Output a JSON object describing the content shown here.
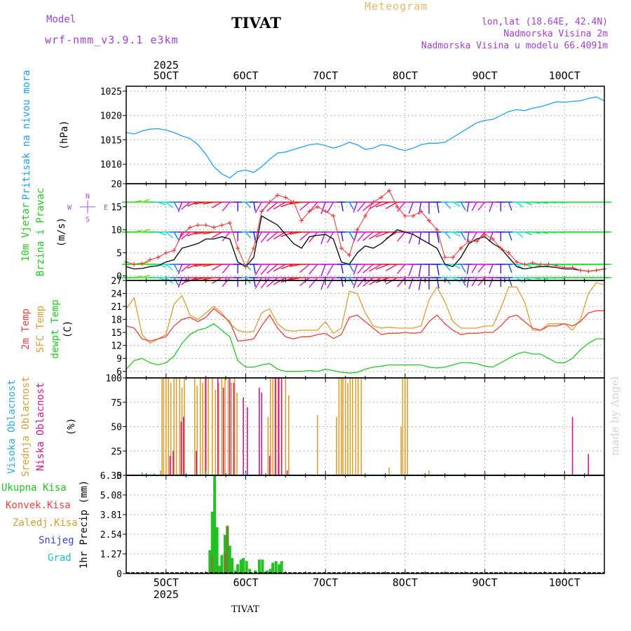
{
  "header": {
    "title": "TIVAT",
    "chart_label": "Meteogram",
    "model_label": "Model",
    "model_name": "wrf-nmm_v3.9.1 e3km",
    "location_lines": [
      "lon,lat (18.64E, 42.4N)",
      "Nadmorska Visina 2m",
      "Nadmorska Visina u modelu 66.4091m"
    ],
    "footer": "TIVAT",
    "credit": "made by Angel"
  },
  "time_axis": {
    "day_labels": [
      "5OCT",
      "6OCT",
      "7OCT",
      "8OCT",
      "9OCT",
      "10OCT"
    ],
    "day_positions": [
      5,
      6,
      7,
      8,
      9,
      10
    ],
    "year": "2025",
    "range": [
      4.5,
      10.5
    ]
  },
  "colors": {
    "pressure": "#1da1f2",
    "wind_speed": "#000000",
    "gust": "#e84040",
    "temp_2m": "#e84040",
    "temp_sfc": "#d8a030",
    "dewpoint": "#20c820",
    "cloud_high": "#2ab0d8",
    "cloud_mid": "#d8a030",
    "cloud_low": "#c81890",
    "precip_total": "#22c022",
    "precip_conv": "#e84040",
    "snow": "#4040e0",
    "hail": "#20c0c0",
    "wind_label": "#a050d0"
  },
  "chart_data": [
    {
      "type": "line",
      "name": "pressure",
      "ylabel_lines": [
        "Pritisak na nivou mora"
      ],
      "unit": "(hPa)",
      "yticks": [
        1010,
        1015,
        1020,
        1025
      ],
      "ylim": [
        1006,
        1026
      ],
      "x": [
        4.5,
        4.6,
        4.7,
        4.8,
        4.9,
        5.0,
        5.1,
        5.2,
        5.3,
        5.4,
        5.5,
        5.6,
        5.7,
        5.8,
        5.9,
        6.0,
        6.1,
        6.2,
        6.3,
        6.4,
        6.5,
        6.6,
        6.7,
        6.8,
        6.9,
        7.0,
        7.1,
        7.2,
        7.3,
        7.4,
        7.5,
        7.6,
        7.7,
        7.8,
        7.9,
        8.0,
        8.1,
        8.2,
        8.3,
        8.4,
        8.5,
        8.6,
        8.7,
        8.8,
        8.9,
        9.0,
        9.1,
        9.2,
        9.3,
        9.4,
        9.5,
        9.6,
        9.7,
        9.8,
        9.9,
        10.0,
        10.1,
        10.2,
        10.3,
        10.4,
        10.5
      ],
      "y": [
        1016.5,
        1016.2,
        1016.8,
        1017.2,
        1017.3,
        1017.0,
        1016.5,
        1015.8,
        1015.3,
        1014.0,
        1012.0,
        1009.5,
        1008.0,
        1007.2,
        1008.5,
        1008.8,
        1008.3,
        1009.5,
        1011.0,
        1012.3,
        1012.5,
        1013.0,
        1013.5,
        1014.0,
        1014.2,
        1013.8,
        1013.3,
        1013.8,
        1014.5,
        1014.0,
        1013.0,
        1013.3,
        1014.0,
        1013.8,
        1013.2,
        1012.8,
        1013.3,
        1014.0,
        1014.3,
        1014.3,
        1014.5,
        1015.5,
        1016.5,
        1017.5,
        1018.5,
        1019.0,
        1019.2,
        1020.0,
        1020.8,
        1021.2,
        1021.0,
        1021.5,
        1021.8,
        1022.3,
        1022.8,
        1022.7,
        1022.9,
        1023.0,
        1023.5,
        1023.8,
        1023.0
      ]
    },
    {
      "type": "line",
      "name": "wind",
      "ylabel_lines": [
        "10m Vjetar",
        "Brzina i Pravac"
      ],
      "unit": "(m/s)",
      "yticks": [
        0,
        5,
        10,
        15,
        20
      ],
      "ylim": [
        -1,
        20
      ],
      "compass": {
        "n": "N",
        "s": "S",
        "e": "E",
        "w": "W"
      },
      "x": [
        4.5,
        4.6,
        4.7,
        4.8,
        4.9,
        5.0,
        5.1,
        5.2,
        5.3,
        5.4,
        5.5,
        5.6,
        5.7,
        5.8,
        5.9,
        6.0,
        6.1,
        6.2,
        6.3,
        6.4,
        6.5,
        6.6,
        6.7,
        6.8,
        6.9,
        7.0,
        7.1,
        7.2,
        7.3,
        7.4,
        7.5,
        7.6,
        7.7,
        7.8,
        7.9,
        8.0,
        8.1,
        8.2,
        8.3,
        8.4,
        8.5,
        8.6,
        8.7,
        8.8,
        8.9,
        9.0,
        9.1,
        9.2,
        9.3,
        9.4,
        9.5,
        9.6,
        9.7,
        9.8,
        9.9,
        10.0,
        10.1,
        10.2,
        10.3,
        10.4,
        10.5
      ],
      "speed": [
        2.0,
        1.5,
        1.6,
        2.0,
        2.2,
        3.0,
        3.5,
        6.0,
        6.5,
        7.0,
        8.0,
        8.0,
        8.5,
        8.0,
        3.0,
        2.0,
        4.0,
        13.0,
        12.0,
        11.0,
        9.0,
        7.0,
        6.0,
        8.5,
        8.8,
        9.0,
        8.0,
        3.0,
        2.5,
        5.0,
        6.5,
        6.0,
        7.0,
        8.5,
        10.0,
        9.5,
        9.0,
        8.0,
        7.0,
        6.0,
        2.5,
        2.0,
        4.0,
        7.0,
        8.0,
        8.5,
        7.0,
        6.0,
        4.0,
        2.0,
        1.5,
        1.8,
        2.0,
        2.0,
        1.8,
        1.5,
        1.5,
        1.2,
        1.0,
        1.2,
        1.5
      ],
      "gust": [
        3.0,
        2.5,
        2.6,
        3.5,
        4.0,
        5.0,
        5.5,
        9.0,
        10.5,
        11.0,
        11.0,
        10.5,
        11.0,
        11.5,
        6.0,
        2.0,
        6.0,
        14.0,
        16.0,
        17.5,
        17.0,
        16.0,
        12.0,
        14.0,
        15.0,
        14.0,
        13.0,
        6.0,
        4.5,
        10.0,
        13.0,
        16.0,
        17.0,
        18.5,
        15.0,
        13.0,
        13.0,
        14.0,
        12.0,
        10.0,
        4.0,
        4.0,
        6.0,
        7.5,
        7.5,
        9.0,
        8.0,
        6.0,
        5.0,
        3.0,
        2.5,
        2.8,
        2.5,
        2.5,
        2.2,
        1.8,
        1.8,
        1.2,
        1.0,
        1.2,
        1.5
      ],
      "direction_deg": [
        90,
        80,
        70,
        90,
        110,
        130,
        150,
        200,
        230,
        250,
        260,
        260,
        240,
        220,
        180,
        140,
        170,
        210,
        220,
        230,
        240,
        250,
        260,
        230,
        220,
        200,
        210,
        170,
        150,
        200,
        220,
        230,
        240,
        250,
        240,
        220,
        200,
        190,
        180,
        170,
        140,
        120,
        150,
        190,
        210,
        220,
        200,
        180,
        160,
        130,
        110,
        100,
        100,
        95,
        95,
        90,
        90,
        90,
        90,
        90,
        90
      ]
    },
    {
      "type": "line",
      "name": "temperature",
      "ylabel_lines": [
        "2m Temp",
        "SFC Temp",
        "dewpt Temp"
      ],
      "unit": "(C)",
      "yticks": [
        6,
        9,
        12,
        15,
        18,
        21,
        24,
        27
      ],
      "ylim": [
        4.5,
        27
      ],
      "x": [
        4.5,
        4.6,
        4.7,
        4.8,
        4.9,
        5.0,
        5.1,
        5.2,
        5.3,
        5.4,
        5.5,
        5.6,
        5.7,
        5.8,
        5.9,
        6.0,
        6.1,
        6.2,
        6.3,
        6.4,
        6.5,
        6.6,
        6.7,
        6.8,
        6.9,
        7.0,
        7.1,
        7.2,
        7.3,
        7.4,
        7.5,
        7.6,
        7.7,
        7.8,
        7.9,
        8.0,
        8.1,
        8.2,
        8.3,
        8.4,
        8.5,
        8.6,
        8.7,
        8.8,
        8.9,
        9.0,
        9.1,
        9.2,
        9.3,
        9.4,
        9.5,
        9.6,
        9.7,
        9.8,
        9.9,
        10.0,
        10.1,
        10.2,
        10.3,
        10.4,
        10.5
      ],
      "t2m": [
        16.5,
        16.0,
        13.5,
        13.0,
        13.5,
        14.0,
        16.5,
        18.0,
        18.5,
        17.5,
        18.5,
        20.5,
        19.0,
        17.5,
        13.0,
        13.2,
        13.5,
        16.5,
        19.0,
        16.0,
        14.0,
        13.5,
        14.0,
        14.0,
        14.5,
        14.8,
        13.6,
        14.5,
        18.5,
        19.0,
        17.5,
        16.0,
        14.5,
        14.8,
        14.8,
        15.0,
        14.8,
        15.0,
        17.5,
        19.0,
        17.0,
        15.5,
        14.5,
        14.8,
        14.8,
        15.0,
        15.0,
        16.5,
        18.5,
        19.0,
        17.5,
        16.0,
        15.5,
        16.5,
        16.5,
        17.0,
        16.5,
        17.5,
        19.5,
        20.0,
        20.0
      ],
      "tsfc": [
        20.5,
        23.0,
        14.5,
        12.5,
        13.5,
        14.5,
        21.5,
        23.5,
        19.0,
        18.0,
        19.5,
        21.0,
        19.5,
        17.0,
        15.5,
        15.0,
        15.3,
        19.5,
        20.5,
        17.0,
        15.5,
        15.3,
        15.5,
        15.5,
        15.5,
        17.5,
        14.8,
        16.0,
        24.5,
        24.0,
        19.5,
        16.5,
        16.0,
        16.2,
        16.0,
        16.0,
        16.0,
        16.5,
        22.5,
        25.5,
        22.0,
        17.5,
        16.0,
        16.0,
        16.0,
        16.5,
        16.5,
        20.5,
        25.5,
        25.5,
        22.0,
        15.5,
        15.5,
        17.0,
        17.0,
        17.0,
        15.5,
        18.0,
        24.0,
        26.5,
        26.0
      ],
      "dewpt": [
        6.5,
        8.5,
        9.0,
        8.0,
        7.5,
        8.0,
        9.5,
        12.5,
        14.5,
        15.5,
        16.0,
        17.0,
        15.5,
        14.0,
        8.5,
        7.0,
        7.0,
        7.5,
        7.8,
        6.5,
        6.0,
        6.0,
        6.0,
        6.2,
        6.0,
        6.5,
        6.2,
        5.8,
        5.6,
        5.8,
        6.5,
        7.0,
        7.2,
        7.5,
        7.5,
        7.5,
        7.5,
        7.5,
        7.0,
        6.8,
        7.0,
        7.5,
        8.0,
        8.0,
        7.8,
        7.2,
        7.0,
        8.0,
        9.0,
        10.0,
        10.5,
        10.0,
        10.0,
        9.0,
        8.0,
        8.0,
        9.0,
        11.0,
        12.5,
        13.5,
        13.5
      ]
    },
    {
      "type": "bar",
      "name": "cloud_cover",
      "ylabel_lines": [
        "Visoka Oblacnost",
        "Srednja Oblacnost",
        "Niska Oblacnost"
      ],
      "unit": "(%)",
      "yticks": [
        0,
        25,
        50,
        75,
        100
      ],
      "ylim": [
        0,
        100
      ],
      "mid_x": [
        4.93,
        4.95,
        4.97,
        5.0,
        5.03,
        5.06,
        5.1,
        5.13,
        5.17,
        5.2,
        5.23,
        5.36,
        5.39,
        5.43,
        5.46,
        5.49,
        5.53,
        5.58,
        5.62,
        5.66,
        5.7,
        5.74,
        5.78,
        5.82,
        5.86,
        5.89,
        6.17,
        6.2,
        6.28,
        6.31,
        6.34,
        6.38,
        6.42,
        6.45,
        6.5,
        6.54,
        6.9,
        7.14,
        7.17,
        7.2,
        7.22,
        7.25,
        7.28,
        7.31,
        7.34,
        7.38,
        7.41,
        7.45,
        7.8,
        7.95,
        7.97,
        8.0,
        8.03,
        8.3
      ],
      "mid_v": [
        5,
        100,
        100,
        100,
        100,
        95,
        100,
        100,
        100,
        90,
        100,
        100,
        92,
        100,
        95,
        100,
        100,
        100,
        88,
        95,
        100,
        100,
        100,
        95,
        100,
        85,
        20,
        5,
        60,
        100,
        100,
        100,
        100,
        95,
        100,
        82,
        62,
        60,
        100,
        100,
        100,
        100,
        95,
        100,
        100,
        100,
        100,
        100,
        8,
        50,
        100,
        100,
        100,
        5
      ],
      "low_x": [
        5.05,
        5.09,
        5.19,
        5.22,
        5.38,
        5.5,
        5.65,
        5.72,
        5.8,
        5.85,
        5.97,
        6.02,
        6.17,
        6.2,
        6.3,
        6.37,
        6.41,
        6.45,
        6.52,
        9.0,
        10.1,
        10.3
      ],
      "low_v": [
        20,
        25,
        55,
        60,
        25,
        100,
        100,
        90,
        100,
        95,
        80,
        70,
        90,
        85,
        20,
        100,
        100,
        100,
        5,
        3,
        60,
        22
      ],
      "high_x": [
        4.7,
        4.85,
        5.5,
        6.0
      ],
      "high_v": [
        3,
        2,
        4,
        3
      ]
    },
    {
      "type": "bar",
      "name": "precipitation",
      "ylabel_lines": [
        "Ukupna Kisa",
        "Konvek.Kisa",
        "Zaledj.Kisa",
        "Snijeg",
        "Grad"
      ],
      "unit": "1hr Precip (mm)",
      "yticks": [
        0,
        1.27,
        2.54,
        3.81,
        5.08,
        6.35
      ],
      "ytick_labels": [
        "0",
        "1.27",
        "2.54",
        "3.81",
        "5.08",
        "6.35"
      ],
      "ylim": [
        0,
        6.35
      ],
      "x": [
        5.55,
        5.58,
        5.61,
        5.64,
        5.67,
        5.7,
        5.74,
        5.77,
        5.8,
        5.83,
        5.87,
        5.9,
        5.94,
        5.97,
        6.01,
        6.05,
        6.12,
        6.17,
        6.21,
        6.27,
        6.31,
        6.34,
        6.38,
        6.42,
        6.45
      ],
      "total": [
        1.5,
        4.0,
        6.35,
        3.0,
        0.5,
        1.2,
        2.5,
        3.0,
        1.8,
        1.0,
        0.2,
        0.6,
        0.9,
        1.0,
        0.8,
        0.3,
        0.2,
        0.9,
        0.9,
        0.2,
        0.3,
        0.7,
        0.8,
        0.6,
        0.8
      ],
      "conv": [
        0,
        1.2,
        0,
        0,
        0,
        0,
        1.3,
        3.1,
        0,
        0,
        0,
        0,
        0,
        0,
        0,
        0,
        0,
        0,
        0,
        0,
        0,
        0,
        0,
        0,
        0
      ]
    }
  ]
}
